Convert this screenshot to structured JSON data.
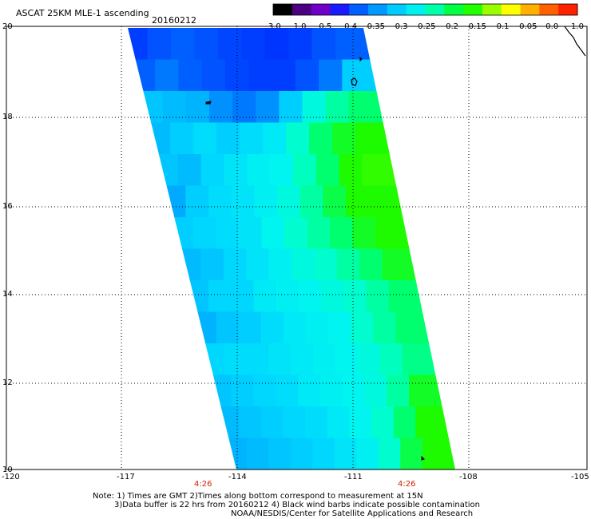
{
  "header": {
    "title": "ASCAT 25KM MLE-1 ascending",
    "date": "20160212"
  },
  "colorbar": {
    "colors": [
      "#000000",
      "#4b0082",
      "#7000c8",
      "#1a1aff",
      "#0060ff",
      "#0099ff",
      "#00ccff",
      "#00f0f0",
      "#00ffaa",
      "#00ff40",
      "#22ff00",
      "#99ff00",
      "#ffff00",
      "#ffb000",
      "#ff6000",
      "#ff2000"
    ],
    "tick_labels": [
      "-3.0",
      "-1.0",
      "-0.5",
      "-0.4",
      "-0.35",
      "-0.3",
      "-0.25",
      "-0.2",
      "-0.15",
      "-0.1",
      "-0.05",
      "0.0",
      "1.0"
    ]
  },
  "map": {
    "lon_labels": [
      "-120",
      "-117",
      "-114",
      "-111",
      "-108",
      "-105"
    ],
    "lat_labels": [
      "20",
      "18",
      "16",
      "14",
      "12",
      "10"
    ],
    "time_labels": [
      "4:26",
      "4:26"
    ],
    "grid": true
  },
  "chart_data": {
    "type": "heatmap",
    "xlabel": "",
    "ylabel": "",
    "x_range": [
      -120,
      -105
    ],
    "y_range": [
      10,
      20
    ],
    "value_units": "MLE",
    "swath_rows_top_to_bottom": [
      [
        -0.5,
        -0.45,
        -0.42,
        -0.45,
        -0.48,
        -0.5,
        -0.52,
        -0.5,
        -0.45,
        -0.42
      ],
      [
        -0.42,
        -0.4,
        -0.42,
        -0.45,
        -0.48,
        -0.5,
        -0.5,
        -0.45,
        -0.4,
        -0.32
      ],
      [
        -0.33,
        -0.34,
        -0.35,
        -0.38,
        -0.4,
        -0.38,
        -0.32,
        -0.25,
        -0.22,
        -0.2
      ],
      [
        -0.34,
        -0.32,
        -0.3,
        -0.32,
        -0.3,
        -0.28,
        -0.24,
        -0.2,
        -0.18,
        -0.17
      ],
      [
        -0.33,
        -0.34,
        -0.31,
        -0.29,
        -0.27,
        -0.26,
        -0.23,
        -0.2,
        -0.17,
        -0.16
      ],
      [
        -0.36,
        -0.32,
        -0.3,
        -0.29,
        -0.27,
        -0.25,
        -0.22,
        -0.19,
        -0.17,
        -0.17
      ],
      [
        -0.32,
        -0.31,
        -0.3,
        -0.29,
        -0.26,
        -0.24,
        -0.22,
        -0.2,
        -0.18,
        -0.17
      ],
      [
        -0.34,
        -0.33,
        -0.31,
        -0.29,
        -0.27,
        -0.25,
        -0.24,
        -0.22,
        -0.2,
        -0.18
      ],
      [
        -0.33,
        -0.31,
        -0.31,
        -0.28,
        -0.27,
        -0.26,
        -0.25,
        -0.24,
        -0.22,
        -0.2
      ],
      [
        -0.35,
        -0.33,
        -0.32,
        -0.3,
        -0.28,
        -0.27,
        -0.26,
        -0.24,
        -0.22,
        -0.2
      ],
      [
        -0.31,
        -0.3,
        -0.3,
        -0.29,
        -0.28,
        -0.27,
        -0.26,
        -0.25,
        -0.23,
        -0.21
      ],
      [
        -0.33,
        -0.32,
        -0.31,
        -0.3,
        -0.28,
        -0.27,
        -0.26,
        -0.25,
        -0.22,
        -0.18
      ],
      [
        -0.34,
        -0.33,
        -0.32,
        -0.31,
        -0.3,
        -0.28,
        -0.26,
        -0.24,
        -0.2,
        -0.17
      ],
      [
        -0.35,
        -0.34,
        -0.33,
        -0.32,
        -0.31,
        -0.29,
        -0.27,
        -0.24,
        -0.19,
        -0.17
      ]
    ]
  },
  "footer": {
    "note_line1": "Note: 1) Times are GMT 2)Times along bottom correspond to measurement at 15N",
    "note_line2": "3)Data buffer is 22 hrs from 20160212 4) Black wind barbs indicate possible contamination",
    "credit": "NOAA/NESDIS/Center for Satellite Applications and Research"
  }
}
